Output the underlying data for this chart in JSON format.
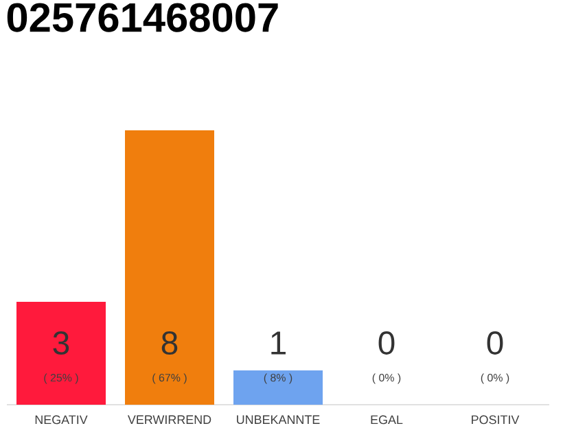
{
  "chart_data": {
    "type": "bar",
    "title": "025761468007",
    "categories": [
      "NEGATIV",
      "VERWIRREND",
      "UNBEKANNTE",
      "EGAL",
      "POSITIV"
    ],
    "values": [
      3,
      8,
      1,
      0,
      0
    ],
    "colors": [
      "#ff1a3c",
      "#f07e0d",
      "#6ea3ef",
      "#dddddd",
      "#dddddd"
    ],
    "value_labels": [
      "3",
      "8",
      "1",
      "0",
      "0"
    ],
    "annotations": [
      {
        "text": "( 25% )",
        "x": "NEGATIV",
        "y": 0
      },
      {
        "text": "( 67% )",
        "x": "VERWIRREND",
        "y": 0
      },
      {
        "text": "( 8% )",
        "x": "UNBEKANNTE",
        "y": 0
      },
      {
        "text": "( 0% )",
        "x": "EGAL",
        "y": 0
      },
      {
        "text": "( 0% )",
        "x": "POSITIV",
        "y": 0
      }
    ],
    "tick_labels": "x"
  }
}
